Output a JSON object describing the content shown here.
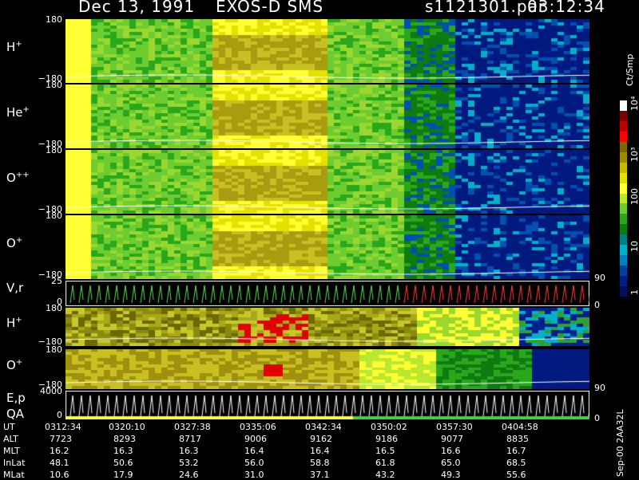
{
  "header": {
    "date": "Dec 13, 1991",
    "instrument": "EXOS-D SMS",
    "file": "s1121301.par",
    "time": "03:12:34"
  },
  "panels": [
    {
      "label": "H",
      "sup": "+",
      "ymax": "180",
      "ymin": "−180",
      "kind": "spec"
    },
    {
      "label": "He",
      "sup": "+",
      "ymax": "180",
      "ymin": "−180",
      "kind": "spec"
    },
    {
      "label": "O",
      "sup": "++",
      "ymax": "180",
      "ymin": "−180",
      "kind": "spec"
    },
    {
      "label": "O",
      "sup": "+",
      "ymax": "180",
      "ymin": "−180",
      "kind": "spec",
      "right": "90"
    },
    {
      "label": "V,r",
      "sup": "",
      "ymax": "25",
      "ymin": "0",
      "kind": "line",
      "right": "0"
    },
    {
      "label": "H",
      "sup": "+",
      "ymax": "180",
      "ymin": "−180",
      "kind": "spec2"
    },
    {
      "label": "O",
      "sup": "+",
      "ymax": "180",
      "ymin": "−180",
      "kind": "spec3",
      "right": "90"
    },
    {
      "label": "E,p",
      "label2": "QA",
      "ymax": "4000",
      "ymin": "0",
      "kind": "line2",
      "right": "0"
    }
  ],
  "colorbar": {
    "unit": "Ct/Smp",
    "labels": [
      "10⁴",
      "10³",
      "100",
      "10",
      "1"
    ],
    "colors": [
      "#ffffff",
      "#7a0000",
      "#c00000",
      "#ff0000",
      "#7a6a00",
      "#a08a00",
      "#c8b800",
      "#e6e000",
      "#ffff33",
      "#b8e830",
      "#6dcc30",
      "#2aa81c",
      "#0f7a10",
      "#008080",
      "#00b0c8",
      "#0080c0",
      "#0040a0",
      "#002080",
      "#001060"
    ]
  },
  "ephemeris": {
    "rows": [
      {
        "name": "UT",
        "values": [
          "0312:34",
          "0320:10",
          "0327:38",
          "0335:06",
          "0342:34",
          "0350:02",
          "0357:30",
          "0404:58"
        ]
      },
      {
        "name": "ALT",
        "values": [
          "7723",
          "8293",
          "8717",
          "9006",
          "9162",
          "9186",
          "9077",
          "8835"
        ]
      },
      {
        "name": "MLT",
        "values": [
          "16.2",
          "16.3",
          "16.3",
          "16.4",
          "16.4",
          "16.5",
          "16.6",
          "16.7"
        ]
      },
      {
        "name": "InLat",
        "values": [
          "48.1",
          "50.6",
          "53.2",
          "56.0",
          "58.8",
          "61.8",
          "65.0",
          "68.5"
        ]
      },
      {
        "name": "MLat",
        "values": [
          "10.6",
          "17.9",
          "24.6",
          "31.0",
          "37.1",
          "43.2",
          "49.3",
          "55.6"
        ]
      }
    ]
  },
  "footer_code": "Sep-00  2AA32L"
}
